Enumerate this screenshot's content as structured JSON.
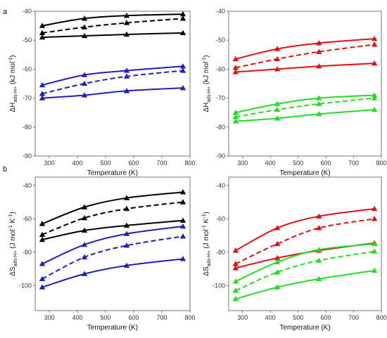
{
  "panel_letters": [
    "a",
    "b"
  ],
  "chart_data": [
    {
      "type": "line",
      "panel": "a",
      "xlabel": "Temperature (K)",
      "ylabel_main": "ΔH",
      "ylabel_sub": "ads-H+",
      "ylabel_unit": " (kJ mol",
      "ylabel_sup": "-1",
      "ylabel_end": ")",
      "xlim": [
        250,
        800
      ],
      "ylim": [
        -90,
        -40
      ],
      "xticks": [
        300,
        400,
        500,
        600,
        700,
        800
      ],
      "yticks": [
        -90,
        -80,
        -70,
        -60,
        -50,
        -40
      ],
      "grid": false,
      "series": [
        {
          "color": "#000000",
          "dash": "solid",
          "x": [
            275,
            425,
            575,
            775
          ],
          "y": [
            -45,
            -42.5,
            -41.5,
            -41
          ]
        },
        {
          "color": "#000000",
          "dash": "dashed",
          "x": [
            275,
            425,
            575,
            775
          ],
          "y": [
            -47.5,
            -45.5,
            -44,
            -42.5
          ]
        },
        {
          "color": "#000000",
          "dash": "solid",
          "x": [
            275,
            425,
            575,
            775
          ],
          "y": [
            -49,
            -48.5,
            -48,
            -47.5
          ]
        },
        {
          "color": "#1f1fbf",
          "dash": "solid",
          "x": [
            275,
            425,
            575,
            775
          ],
          "y": [
            -65.5,
            -62,
            -60.5,
            -59
          ]
        },
        {
          "color": "#1f1fbf",
          "dash": "dashed",
          "x": [
            275,
            425,
            575,
            775
          ],
          "y": [
            -68.5,
            -65,
            -62.5,
            -60.5
          ]
        },
        {
          "color": "#1f1fbf",
          "dash": "solid",
          "x": [
            275,
            425,
            575,
            775
          ],
          "y": [
            -70,
            -69,
            -67.5,
            -66.5
          ]
        }
      ]
    },
    {
      "type": "line",
      "panel": "a-right",
      "xlabel": "Temperature (K)",
      "ylabel_main": "ΔH",
      "ylabel_sub": "ads-H+",
      "ylabel_unit": " (kJ mol",
      "ylabel_sup": "-1",
      "ylabel_end": ")",
      "xlim": [
        250,
        800
      ],
      "ylim": [
        -90,
        -40
      ],
      "xticks": [
        300,
        400,
        500,
        600,
        700,
        800
      ],
      "yticks": [
        -90,
        -80,
        -70,
        -60,
        -50,
        -40
      ],
      "grid": false,
      "series": [
        {
          "color": "#e01010",
          "dash": "solid",
          "x": [
            275,
            425,
            575,
            775
          ],
          "y": [
            -56.5,
            -53,
            -51,
            -49.5
          ]
        },
        {
          "color": "#e01010",
          "dash": "dashed",
          "x": [
            275,
            425,
            575,
            775
          ],
          "y": [
            -59.5,
            -56.5,
            -54,
            -51.5
          ]
        },
        {
          "color": "#e01010",
          "dash": "solid",
          "x": [
            275,
            425,
            575,
            775
          ],
          "y": [
            -61,
            -60,
            -59,
            -58
          ]
        },
        {
          "color": "#22dd22",
          "dash": "solid",
          "x": [
            275,
            425,
            575,
            775
          ],
          "y": [
            -75,
            -72,
            -70,
            -69
          ]
        },
        {
          "color": "#22dd22",
          "dash": "dashed",
          "x": [
            275,
            425,
            575,
            775
          ],
          "y": [
            -76.5,
            -74,
            -72,
            -70
          ]
        },
        {
          "color": "#22dd22",
          "dash": "solid",
          "x": [
            275,
            425,
            575,
            775
          ],
          "y": [
            -78,
            -77,
            -75.5,
            -74
          ]
        }
      ]
    },
    {
      "type": "line",
      "panel": "b",
      "xlabel": "Temperature (K)",
      "ylabel_main": "ΔS",
      "ylabel_sub": "ads-H+",
      "ylabel_unit": " (J mol",
      "ylabel_sup": "-1",
      "ylabel_mid": " K",
      "ylabel_sup2": "-1",
      "ylabel_end": ")",
      "xlim": [
        250,
        800
      ],
      "ylim": [
        -115,
        -35
      ],
      "xticks": [
        300,
        400,
        500,
        600,
        700,
        800
      ],
      "yticks": [
        -100,
        -80,
        -60,
        -40
      ],
      "grid": false,
      "series": [
        {
          "color": "#000000",
          "dash": "solid",
          "x": [
            275,
            425,
            575,
            775
          ],
          "y": [
            -63,
            -53,
            -47.5,
            -44
          ]
        },
        {
          "color": "#000000",
          "dash": "dashed",
          "x": [
            275,
            425,
            575,
            775
          ],
          "y": [
            -69.5,
            -59.5,
            -54,
            -50
          ]
        },
        {
          "color": "#000000",
          "dash": "solid",
          "x": [
            275,
            425,
            575,
            775
          ],
          "y": [
            -72.5,
            -67,
            -64,
            -61
          ]
        },
        {
          "color": "#1f1fbf",
          "dash": "solid",
          "x": [
            275,
            425,
            575,
            775
          ],
          "y": [
            -87,
            -75.5,
            -69,
            -64.5
          ]
        },
        {
          "color": "#1f1fbf",
          "dash": "dashed",
          "x": [
            275,
            425,
            575,
            775
          ],
          "y": [
            -96,
            -83,
            -76,
            -70.5
          ]
        },
        {
          "color": "#1f1fbf",
          "dash": "solid",
          "x": [
            275,
            425,
            575,
            775
          ],
          "y": [
            -101,
            -93,
            -88,
            -84
          ]
        }
      ]
    },
    {
      "type": "line",
      "panel": "b-right",
      "xlabel": "Temperature (K)",
      "ylabel_main": "ΔS",
      "ylabel_sub": "ads-H+",
      "ylabel_unit": " (J mol",
      "ylabel_sup": "-1",
      "ylabel_mid": " K",
      "ylabel_sup2": "-1",
      "ylabel_end": ")",
      "xlim": [
        250,
        800
      ],
      "ylim": [
        -115,
        -35
      ],
      "xticks": [
        300,
        400,
        500,
        600,
        700,
        800
      ],
      "yticks": [
        -100,
        -80,
        -60,
        -40
      ],
      "grid": false,
      "series": [
        {
          "color": "#e01010",
          "dash": "solid",
          "x": [
            275,
            425,
            575,
            775
          ],
          "y": [
            -79,
            -65.5,
            -58.5,
            -54
          ]
        },
        {
          "color": "#e01010",
          "dash": "dashed",
          "x": [
            275,
            425,
            575,
            775
          ],
          "y": [
            -87,
            -75,
            -65.5,
            -60
          ]
        },
        {
          "color": "#e01010",
          "dash": "solid",
          "x": [
            275,
            425,
            575,
            775
          ],
          "y": [
            -89.5,
            -83.5,
            -79,
            -74.5
          ]
        },
        {
          "color": "#22dd22",
          "dash": "solid",
          "x": [
            275,
            425,
            575,
            775
          ],
          "y": [
            -97.5,
            -86,
            -78.5,
            -75
          ]
        },
        {
          "color": "#22dd22",
          "dash": "dashed",
          "x": [
            275,
            425,
            575,
            775
          ],
          "y": [
            -103,
            -92,
            -85,
            -79.5
          ]
        },
        {
          "color": "#22dd22",
          "dash": "solid",
          "x": [
            275,
            425,
            575,
            775
          ],
          "y": [
            -108,
            -101,
            -96,
            -91
          ]
        }
      ]
    }
  ]
}
